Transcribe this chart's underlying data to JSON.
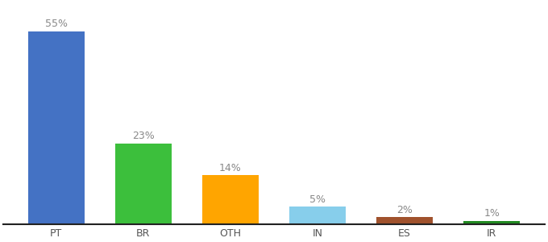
{
  "categories": [
    "PT",
    "BR",
    "OTH",
    "IN",
    "ES",
    "IR"
  ],
  "values": [
    55,
    23,
    14,
    5,
    2,
    1
  ],
  "labels": [
    "55%",
    "23%",
    "14%",
    "5%",
    "2%",
    "1%"
  ],
  "bar_colors": [
    "#4472C4",
    "#3CBF3C",
    "#FFA500",
    "#87CEEB",
    "#A0522D",
    "#228B22"
  ],
  "background_color": "#ffffff",
  "ylim": [
    0,
    63
  ],
  "bar_width": 0.65,
  "label_fontsize": 9,
  "tick_fontsize": 9,
  "label_color": "#888888",
  "tick_color": "#555555",
  "spine_color": "#222222"
}
